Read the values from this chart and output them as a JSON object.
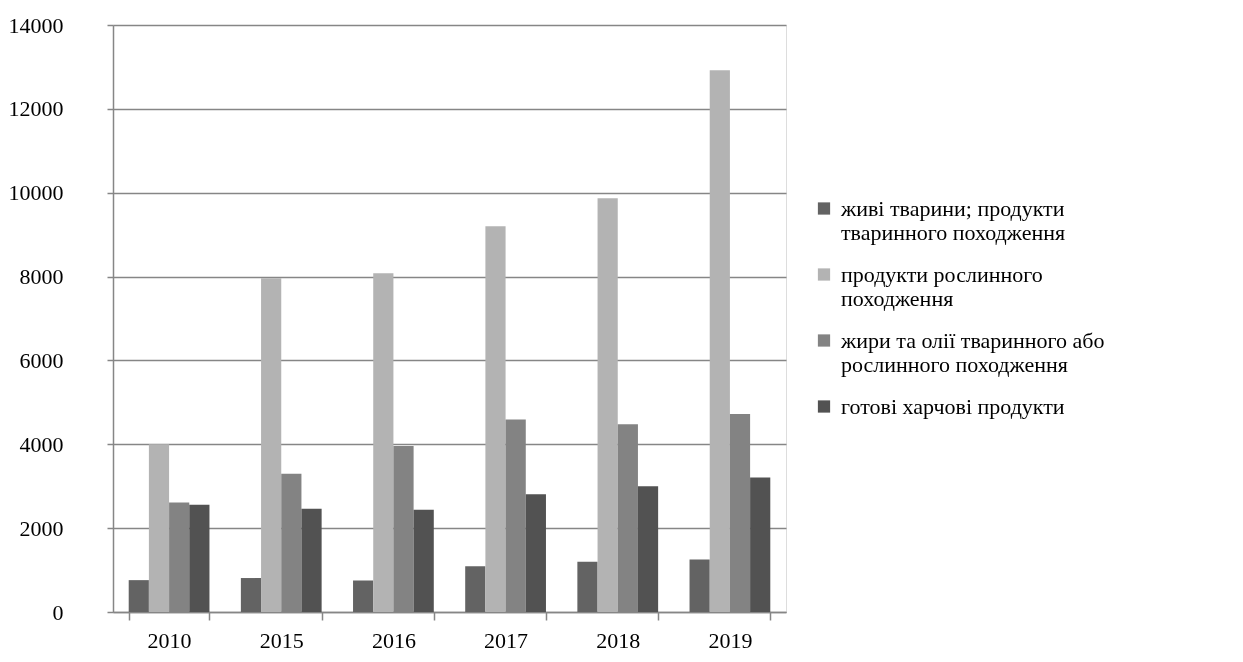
{
  "chart_data": {
    "type": "bar",
    "categories": [
      "2010",
      "2015",
      "2016",
      "2017",
      "2018",
      "2019"
    ],
    "series": [
      {
        "name": "живі тварини; продукти тваринного походження",
        "color": "#636363",
        "values": [
          760,
          810,
          750,
          1090,
          1200,
          1250
        ]
      },
      {
        "name": "продукти рослинного походження",
        "color": "#b3b3b3",
        "values": [
          4000,
          7960,
          8080,
          9200,
          9870,
          12920
        ]
      },
      {
        "name": "жири та олії тваринного або рослинного походження",
        "color": "#838383",
        "values": [
          2610,
          3300,
          3960,
          4590,
          4480,
          4720
        ]
      },
      {
        "name": "готові харчові продукти",
        "color": "#525252",
        "values": [
          2560,
          2460,
          2440,
          2810,
          3000,
          3210
        ]
      }
    ],
    "ylim": [
      0,
      14000
    ],
    "yticks": [
      0,
      2000,
      4000,
      6000,
      8000,
      10000,
      12000,
      14000
    ],
    "grid": "y",
    "legend": "right"
  }
}
